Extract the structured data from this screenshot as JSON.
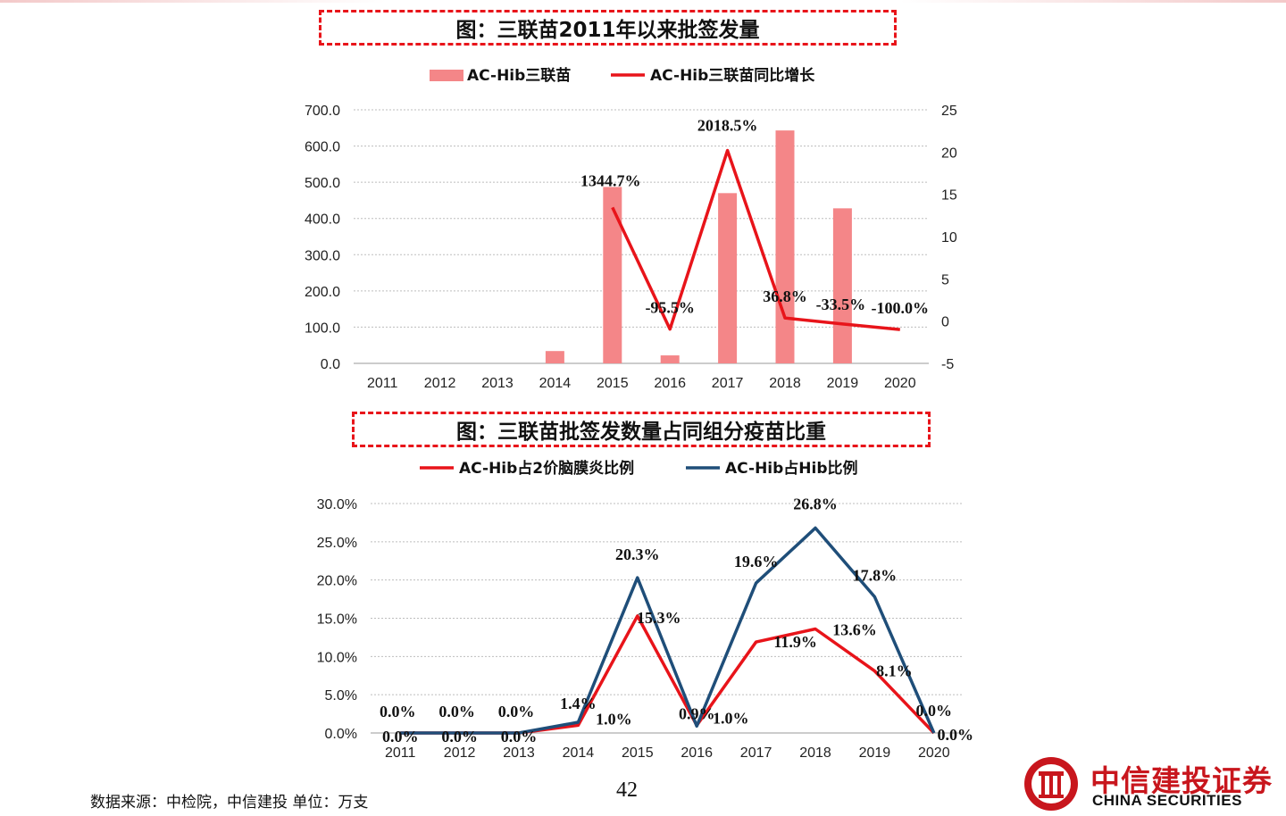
{
  "chart_titles": {
    "top": "图：三联苗2011年以来批签发量",
    "bottom": "图：三联苗批签发数量占同组分疫苗比重"
  },
  "colors": {
    "bar": "#f48688",
    "red_line": "#e8141a",
    "blue_line": "#1f4e79",
    "accent": "#c8161d"
  },
  "chart_data": [
    {
      "type": "bar+line",
      "categories": [
        "2011",
        "2012",
        "2013",
        "2014",
        "2015",
        "2016",
        "2017",
        "2018",
        "2019",
        "2020"
      ],
      "legend_position": "top",
      "grid": true,
      "y_left": {
        "ticks": [
          "0.0",
          "100.0",
          "200.0",
          "300.0",
          "400.0",
          "500.0",
          "600.0",
          "700.0"
        ],
        "range": [
          0,
          700
        ]
      },
      "y_right": {
        "ticks": [
          "-5",
          "0",
          "5",
          "10",
          "15",
          "20",
          "25"
        ],
        "range": [
          -5,
          25
        ]
      },
      "series": [
        {
          "name": "AC-Hib三联苗",
          "kind": "bar",
          "axis": "left",
          "values": [
            0,
            0,
            0,
            34,
            487,
            22,
            470,
            643,
            428,
            0
          ]
        },
        {
          "name": "AC-Hib三联苗同比增长",
          "kind": "line",
          "axis": "right",
          "values": [
            null,
            null,
            null,
            null,
            13.447,
            -0.955,
            20.185,
            0.368,
            -0.335,
            -1.0
          ],
          "labels": [
            null,
            null,
            null,
            null,
            "1344.7%",
            "-95.5%",
            "2018.5%",
            "36.8%",
            "-33.5%",
            "-100.0%"
          ]
        }
      ]
    },
    {
      "type": "line",
      "categories": [
        "2011",
        "2012",
        "2013",
        "2014",
        "2015",
        "2016",
        "2017",
        "2018",
        "2019",
        "2020"
      ],
      "legend_position": "top",
      "grid": true,
      "y": {
        "ticks": [
          "0.0%",
          "5.0%",
          "10.0%",
          "15.0%",
          "20.0%",
          "25.0%",
          "30.0%"
        ],
        "range": [
          0,
          30
        ]
      },
      "series": [
        {
          "name": "AC-Hib占2价脑膜炎比例",
          "kind": "line",
          "values": [
            0,
            0,
            0,
            1.0,
            15.3,
            1.0,
            11.9,
            13.6,
            8.1,
            0
          ],
          "labels": [
            "0.0%",
            "0.0%",
            "0.0%",
            "1.0%",
            "15.3%",
            "1.0%",
            "11.9%",
            "13.6%",
            "8.1%",
            "0.0%"
          ]
        },
        {
          "name": "AC-Hib占Hib比例",
          "kind": "line",
          "values": [
            0,
            0,
            0,
            1.4,
            20.3,
            0.9,
            19.6,
            26.8,
            17.8,
            0
          ],
          "labels": [
            "0.0%",
            "0.0%",
            "0.0%",
            "1.4%",
            "20.3%",
            "0.9%",
            "19.6%",
            "26.8%",
            "17.8%",
            "0.0%"
          ]
        }
      ]
    }
  ],
  "footer": {
    "source": "数据来源：中检院，中信建投  单位：万支",
    "page_number": "42"
  },
  "logo": {
    "name_cn": "中信建投证券",
    "name_en": "CHINA SECURITIES"
  }
}
